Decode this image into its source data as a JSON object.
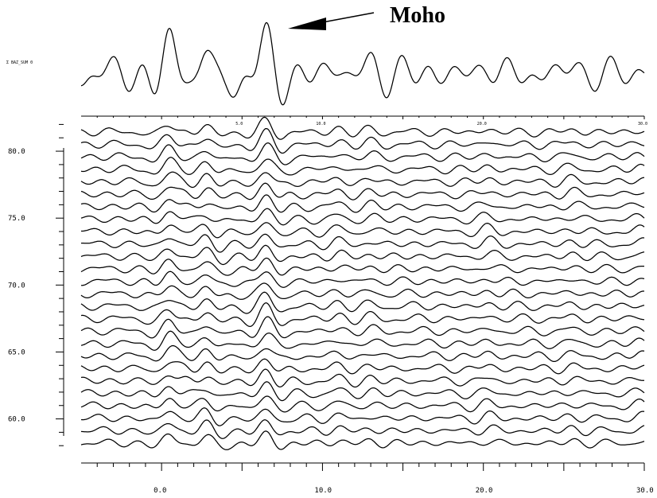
{
  "chart_data": {
    "type": "line",
    "title": "",
    "annotation": "Moho",
    "stack_trace_label": "Σ BAZ_SUM 0",
    "x_axis": {
      "range": [
        -5,
        30
      ],
      "ticks": [
        0,
        10,
        20,
        30
      ],
      "tick_labels": [
        "0.0",
        "10.0",
        "20.0",
        "30.0"
      ]
    },
    "top_axis": {
      "tick_labels": [
        "5.0",
        "10.0",
        "20.0",
        "30.0"
      ]
    },
    "y_axis": {
      "range": [
        57.3,
        82.5
      ],
      "ticks": [
        60,
        65,
        70,
        75,
        80
      ],
      "tick_labels": [
        "60.0",
        "65.0",
        "70.0",
        "75.0",
        "80.0"
      ]
    },
    "stack_trace": {
      "peaks": [
        {
          "x": 0.5,
          "amp": 0.9
        },
        {
          "x": 1.5,
          "amp": 0.55
        },
        {
          "x": 2.7,
          "amp": 0.75
        },
        {
          "x": 6.5,
          "amp": 1.0
        },
        {
          "x": 11.0,
          "amp": 0.35
        },
        {
          "x": 13.0,
          "amp": 0.3
        },
        {
          "x": 20.3,
          "amp": 0.3
        },
        {
          "x": 25.5,
          "amp": 0.25
        },
        {
          "x": 29.8,
          "amp": 0.25
        }
      ]
    },
    "traces": {
      "count": 26,
      "baseline_start": 58.2,
      "baseline_step": 0.93
    }
  }
}
